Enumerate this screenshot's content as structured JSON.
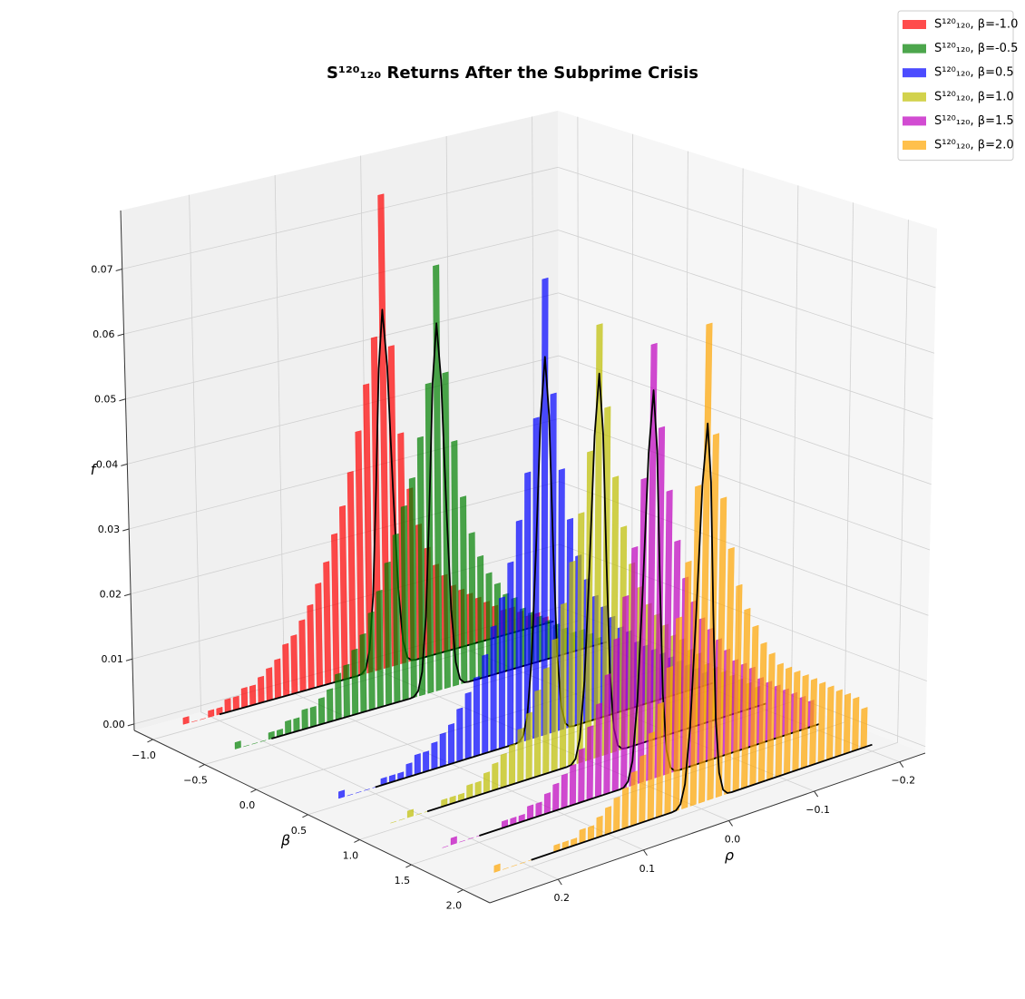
{
  "chart_data": {
    "type": "bar3d",
    "title": "S¹²⁰₁₂₀ Returns After the Subprime Crisis",
    "xlabel": "ρ",
    "ylabel": "β",
    "zlabel": "f",
    "xlim": [
      -0.23,
      0.28
    ],
    "ylim": [
      -1.18,
      2.26
    ],
    "zlim": [
      -0.001,
      0.079
    ],
    "xticks": [
      {
        "value": -0.2,
        "label": "−0.2"
      },
      {
        "value": -0.1,
        "label": "−0.1"
      },
      {
        "value": 0,
        "label": "0.0"
      },
      0.1,
      0.2
    ],
    "yticks": [
      {
        "value": -1,
        "label": "−1.0"
      },
      {
        "value": -0.5,
        "label": "−0.5"
      },
      {
        "value": 0,
        "label": "0.0"
      },
      0.5,
      {
        "value": 1,
        "label": "1.0"
      },
      1.5,
      {
        "value": 2,
        "label": "2.0"
      }
    ],
    "zticks": [
      {
        "value": 0,
        "label": "0.00"
      },
      {
        "value": 0.01,
        "label": "0.01"
      },
      {
        "value": 0.02,
        "label": "0.02"
      },
      {
        "value": 0.03,
        "label": "0.03"
      },
      {
        "value": 0.04,
        "label": "0.04"
      },
      {
        "value": 0.05,
        "label": "0.05"
      },
      {
        "value": 0.06,
        "label": "0.06"
      },
      {
        "value": 0.07,
        "label": "0.07"
      }
    ],
    "grid": true,
    "legend": "upper right",
    "alpha": 0.7,
    "fit_color": "#000000",
    "x": [
      -0.19,
      -0.18,
      -0.17,
      -0.16,
      -0.15,
      -0.14,
      -0.13,
      -0.12,
      -0.11,
      -0.1,
      -0.09,
      -0.08,
      -0.07,
      -0.06,
      -0.05,
      -0.04,
      -0.03,
      -0.02,
      -0.01,
      0,
      0.01,
      0.02,
      0.03,
      0.04,
      0.05,
      0.06,
      0.07,
      0.08,
      0.09,
      0.1,
      0.11,
      0.12,
      0.13,
      0.14,
      0.15,
      0.16,
      0.17,
      0.18,
      0.19,
      0.2,
      0.21,
      0.22,
      0.23,
      0.24
    ],
    "fit_x": [
      -0.2,
      -0.04,
      -0.035,
      -0.03,
      -0.025,
      -0.02,
      -0.015,
      -0.01,
      -0.005,
      0,
      0.005,
      0.01,
      0.015,
      0.02,
      0.025,
      0.03,
      0.035,
      0.04,
      0.2
    ],
    "series": [
      {
        "name": "S¹²⁰₁₂₀, β=-1.0",
        "color": "#ff0000",
        "y": -1.0,
        "values": [
          0.001,
          0.002,
          0.002,
          0.003,
          0.004,
          0.004,
          0.005,
          0.006,
          0.007,
          0.008,
          0.009,
          0.01,
          0.012,
          0.014,
          0.017,
          0.021,
          0.027,
          0.036,
          0.05,
          0.074,
          0.052,
          0.045,
          0.038,
          0.032,
          0.027,
          0.023,
          0.019,
          0.016,
          0.013,
          0.011,
          0.009,
          0.008,
          0.006,
          0.005,
          0.004,
          0.003,
          0.003,
          0.002,
          0.002,
          0.001,
          0.001,
          0,
          0,
          0.001
        ],
        "fit": [
          0,
          0,
          0,
          0.0001,
          0.0007,
          0.0035,
          0.0118,
          0.028,
          0.047,
          0.056,
          0.047,
          0.028,
          0.0118,
          0.0035,
          0.0007,
          0.0001,
          0,
          0,
          0
        ]
      },
      {
        "name": "S¹²⁰₁₂₀, β=-0.5",
        "color": "#008000",
        "y": -0.5,
        "values": [
          0.001,
          0.002,
          0.003,
          0.003,
          0.004,
          0.005,
          0.006,
          0.007,
          0.008,
          0.009,
          0.011,
          0.012,
          0.014,
          0.016,
          0.019,
          0.023,
          0.029,
          0.038,
          0.049,
          0.066,
          0.048,
          0.04,
          0.034,
          0.03,
          0.026,
          0.022,
          0.018,
          0.015,
          0.012,
          0.01,
          0.008,
          0.007,
          0.005,
          0.004,
          0.003,
          0.003,
          0.002,
          0.002,
          0.001,
          0.001,
          0,
          0,
          0,
          0.001
        ],
        "fit": [
          0,
          0,
          0,
          0.0001,
          0.0008,
          0.0036,
          0.012,
          0.0285,
          0.048,
          0.057,
          0.048,
          0.0285,
          0.012,
          0.0036,
          0.0008,
          0.0001,
          0,
          0,
          0
        ]
      },
      {
        "name": "S¹²⁰₁₂₀, β=0.5",
        "color": "#0000ff",
        "y": 0.5,
        "values": [
          0.002,
          0.003,
          0.004,
          0.005,
          0.006,
          0.007,
          0.008,
          0.009,
          0.01,
          0.012,
          0.013,
          0.015,
          0.017,
          0.019,
          0.022,
          0.026,
          0.032,
          0.04,
          0.052,
          0.07,
          0.049,
          0.041,
          0.034,
          0.028,
          0.023,
          0.019,
          0.015,
          0.012,
          0.01,
          0.008,
          0.006,
          0.005,
          0.004,
          0.003,
          0.003,
          0.002,
          0.001,
          0.001,
          0.001,
          0,
          0,
          0,
          0,
          0.001
        ],
        "fit": [
          0,
          0,
          0,
          0.0001,
          0.0008,
          0.0037,
          0.0122,
          0.029,
          0.0488,
          0.058,
          0.0488,
          0.029,
          0.0122,
          0.0037,
          0.0008,
          0.0001,
          0,
          0,
          0
        ]
      },
      {
        "name": "S¹²⁰₁₂₀, β=1.0",
        "color": "#bfbf00",
        "y": 1.0,
        "values": [
          0.003,
          0.004,
          0.005,
          0.006,
          0.007,
          0.008,
          0.009,
          0.011,
          0.012,
          0.014,
          0.015,
          0.017,
          0.019,
          0.021,
          0.024,
          0.028,
          0.034,
          0.042,
          0.053,
          0.066,
          0.047,
          0.038,
          0.031,
          0.025,
          0.02,
          0.016,
          0.013,
          0.01,
          0.008,
          0.006,
          0.005,
          0.004,
          0.003,
          0.002,
          0.002,
          0.001,
          0.001,
          0.001,
          0,
          0,
          0,
          0.001,
          0,
          0
        ],
        "fit": [
          0,
          0,
          0,
          0.0001,
          0.0008,
          0.0037,
          0.0123,
          0.0293,
          0.0492,
          0.0585,
          0.0492,
          0.0293,
          0.0123,
          0.0037,
          0.0008,
          0.0001,
          0,
          0,
          0
        ]
      },
      {
        "name": "S¹²⁰₁₂₀, β=1.5",
        "color": "#bf00bf",
        "y": 1.5,
        "values": [
          0.004,
          0.005,
          0.006,
          0.007,
          0.008,
          0.009,
          0.01,
          0.012,
          0.013,
          0.014,
          0.016,
          0.018,
          0.02,
          0.022,
          0.025,
          0.029,
          0.035,
          0.043,
          0.053,
          0.066,
          0.046,
          0.036,
          0.029,
          0.023,
          0.018,
          0.014,
          0.011,
          0.008,
          0.006,
          0.005,
          0.004,
          0.003,
          0.002,
          0.002,
          0.001,
          0.001,
          0.001,
          0,
          0,
          0,
          0,
          0,
          0.001,
          0
        ],
        "fit": [
          0,
          0,
          0,
          0.0001,
          0.0008,
          0.0037,
          0.0124,
          0.0295,
          0.0496,
          0.059,
          0.0496,
          0.0295,
          0.0124,
          0.0037,
          0.0008,
          0.0001,
          0,
          0,
          0
        ]
      },
      {
        "name": "S¹²⁰₁₂₀, β=2.0",
        "color": "#ffa500",
        "y": 2.0,
        "values": [
          0.006,
          0.008,
          0.009,
          0.01,
          0.011,
          0.012,
          0.013,
          0.014,
          0.015,
          0.016,
          0.017,
          0.019,
          0.021,
          0.024,
          0.027,
          0.031,
          0.037,
          0.045,
          0.055,
          0.072,
          0.048,
          0.037,
          0.029,
          0.022,
          0.017,
          0.013,
          0.01,
          0.008,
          0.006,
          0.005,
          0.004,
          0.003,
          0.002,
          0.002,
          0.001,
          0.001,
          0.001,
          0,
          0,
          0,
          0,
          0,
          0,
          0.001
        ],
        "fit": [
          0,
          0,
          0,
          0.0001,
          0.0008,
          0.0036,
          0.012,
          0.0285,
          0.048,
          0.057,
          0.048,
          0.0285,
          0.012,
          0.0036,
          0.0008,
          0.0001,
          0,
          0,
          0
        ]
      }
    ]
  }
}
